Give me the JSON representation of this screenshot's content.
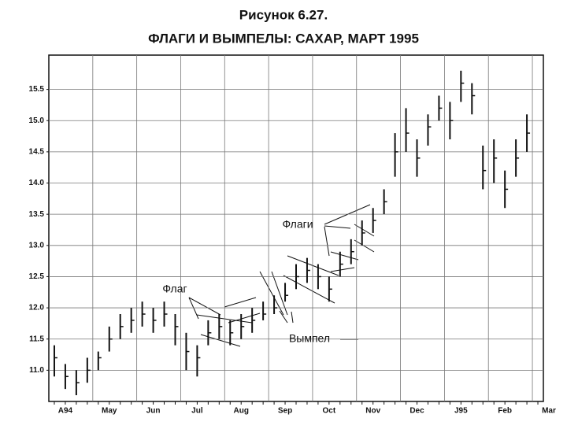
{
  "chart_data": {
    "type": "ohlc",
    "title": "Рисунок 6.27.",
    "subtitle": "ФЛАГИ И ВЫМПЕЛЫ: САХАР, МАРТ 1995",
    "categories": [
      "A94",
      null,
      null,
      null,
      "May",
      null,
      null,
      null,
      "Jun",
      null,
      null,
      null,
      "Jul",
      null,
      null,
      null,
      "Aug",
      null,
      null,
      null,
      "Sep",
      null,
      null,
      null,
      "Oct",
      null,
      null,
      null,
      "Nov",
      null,
      null,
      null,
      "Dec",
      null,
      null,
      null,
      "J95",
      null,
      null,
      null,
      "Feb",
      null,
      null,
      null,
      "Mar"
    ],
    "series": [
      {
        "name": "Сахар",
        "color": "#111111",
        "high": [
          11.4,
          11.1,
          11.0,
          11.2,
          11.3,
          11.7,
          11.9,
          12.0,
          12.1,
          12.0,
          12.1,
          11.9,
          11.6,
          11.4,
          11.8,
          11.9,
          11.8,
          11.9,
          12.0,
          12.1,
          12.2,
          12.4,
          12.7,
          12.8,
          12.7,
          12.5,
          12.9,
          13.1,
          13.4,
          13.6,
          13.9,
          14.8,
          15.2,
          14.7,
          15.1,
          15.4,
          15.3,
          15.8,
          15.6,
          14.6,
          14.7,
          14.2,
          14.7,
          15.1,
          null
        ],
        "low": [
          10.9,
          10.7,
          10.6,
          10.8,
          11.0,
          11.3,
          11.5,
          11.6,
          11.7,
          11.6,
          11.7,
          11.4,
          11.0,
          10.9,
          11.4,
          11.5,
          11.4,
          11.5,
          11.6,
          11.8,
          11.9,
          12.1,
          12.3,
          12.4,
          12.3,
          12.1,
          12.5,
          12.7,
          13.0,
          13.2,
          13.5,
          14.1,
          14.5,
          14.1,
          14.6,
          15.0,
          14.7,
          15.3,
          15.1,
          13.9,
          14.0,
          13.6,
          14.1,
          14.5,
          null
        ],
        "close": [
          11.2,
          10.9,
          10.8,
          11.0,
          11.2,
          11.5,
          11.7,
          11.8,
          11.9,
          11.8,
          11.9,
          11.7,
          11.3,
          11.2,
          11.6,
          11.7,
          11.6,
          11.7,
          11.8,
          11.9,
          12.0,
          12.2,
          12.5,
          12.6,
          12.5,
          12.3,
          12.7,
          12.9,
          13.2,
          13.4,
          13.7,
          14.5,
          14.8,
          14.4,
          14.9,
          15.2,
          15.0,
          15.6,
          15.4,
          14.2,
          14.4,
          13.9,
          14.4,
          14.8,
          null
        ]
      }
    ],
    "ylim": [
      10.5,
      16.05
    ],
    "yticks": [
      {
        "value": 11.0,
        "label": "11.0"
      },
      11.5,
      {
        "value": 12.0,
        "label": "12.0"
      },
      12.5,
      {
        "value": 13.0,
        "label": "13.0"
      },
      13.5,
      {
        "value": 14.0,
        "label": "14.0"
      },
      14.5,
      {
        "value": 15.0,
        "label": "15.0"
      },
      15.5
    ],
    "grid": true,
    "annotations": [
      "Флаг",
      "Флаги",
      "Вымпел"
    ]
  }
}
